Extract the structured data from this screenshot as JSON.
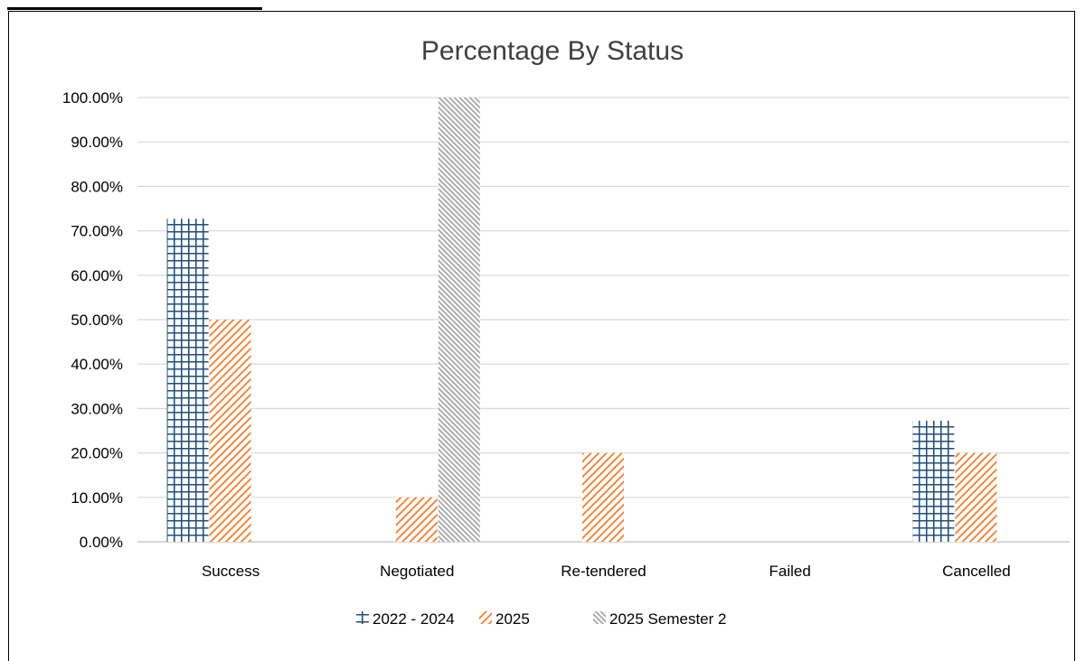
{
  "chart_data": {
    "type": "bar",
    "title": "Percentage By Status",
    "xlabel": "",
    "ylabel": "",
    "categories": [
      "Success",
      "Negotiated",
      "Re-tendered",
      "Failed",
      "Cancelled"
    ],
    "series": [
      {
        "name": "2022 - 2024",
        "values": [
          72.73,
          0,
          0,
          0,
          27.27
        ],
        "color": "#1f4e79",
        "pattern": "grid"
      },
      {
        "name": "2025",
        "values": [
          50,
          10,
          20,
          0,
          20
        ],
        "color": "#ed7d31",
        "pattern": "diagonal"
      },
      {
        "name": "2025 Semester 2",
        "values": [
          0,
          100,
          0,
          0,
          0
        ],
        "color": "#a5a5a5",
        "pattern": "diagonal-dense"
      }
    ],
    "ylim": [
      0,
      100
    ],
    "yticks": [
      "0.00%",
      "10.00%",
      "20.00%",
      "30.00%",
      "40.00%",
      "50.00%",
      "60.00%",
      "70.00%",
      "80.00%",
      "90.00%",
      "100.00%"
    ],
    "grid": true,
    "legend": "bottom"
  }
}
